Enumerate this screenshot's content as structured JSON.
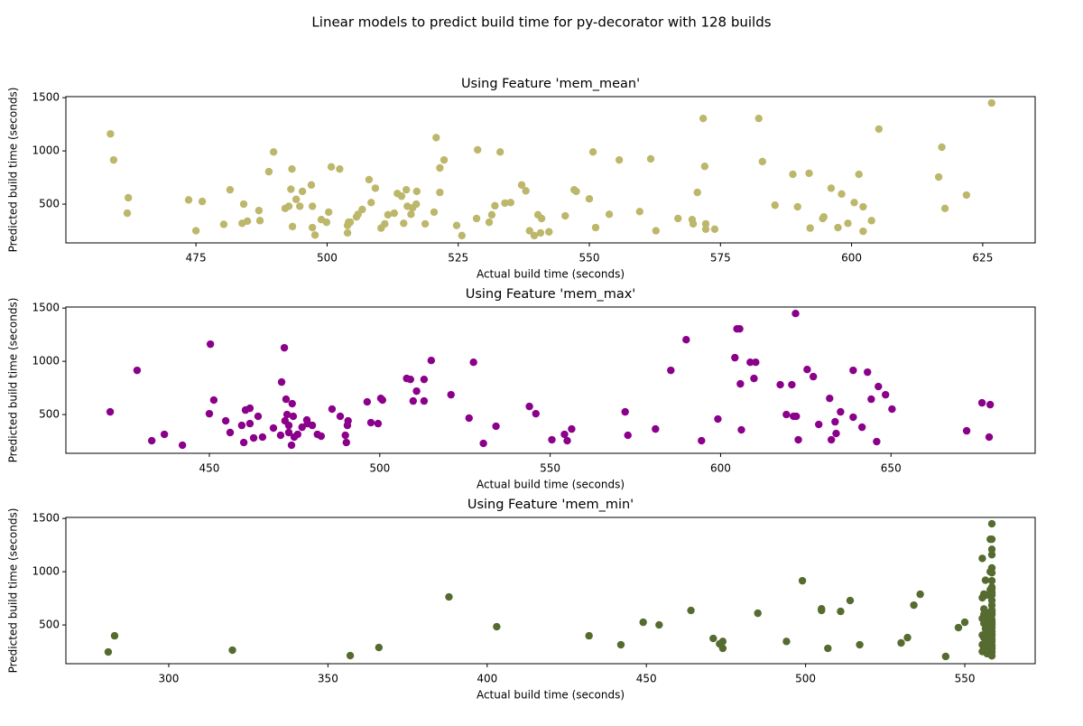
{
  "title": "Linear models to predict build time for py-decorator with 128 builds",
  "chart_data": [
    {
      "type": "scatter",
      "title": "Using Feature 'mem_mean'",
      "x_label": "Actual build time (seconds)",
      "y_label": "Predicted build time (seconds)",
      "color": "#bdb76b",
      "xlim": [
        450.2,
        635
      ],
      "ylim": [
        136,
        1510
      ],
      "xticks": [
        475,
        500,
        525,
        550,
        575,
        600,
        625
      ],
      "yticks": [
        500,
        1000,
        1500
      ],
      "x": [
        458.7,
        459.3,
        461.9,
        462.1,
        473.6,
        475,
        476.2,
        480.3,
        481.5,
        484.1,
        483.8,
        484.8,
        487,
        487.2,
        488.9,
        489.8,
        492,
        492.7,
        493.1,
        493.3,
        493.4,
        494.1,
        494.8,
        495.3,
        497,
        497.2,
        497.2,
        497.7,
        498.9,
        499.9,
        500.3,
        500.8,
        502.4,
        503.9,
        504.1,
        503.9,
        504.4,
        505.6,
        505.9,
        506.7,
        508,
        508.4,
        509.2,
        510.3,
        511,
        511.6,
        512.8,
        513.4,
        514.2,
        514.6,
        515.1,
        515.3,
        516,
        516.3,
        517,
        517.1,
        518.7,
        520.4,
        520.8,
        521.5,
        521.5,
        522.3,
        524.7,
        525.7,
        528.7,
        528.5,
        530.9,
        531.4,
        532,
        533,
        533.9,
        535,
        537.1,
        537.9,
        538.6,
        539.5,
        540.2,
        540.7,
        540.9,
        542.3,
        545.4,
        547.1,
        547.5,
        550,
        550.7,
        551.2,
        553.8,
        555.7,
        559.6,
        561.7,
        562.7,
        566.9,
        569.6,
        569.8,
        570.6,
        571.7,
        572,
        572.2,
        572.2,
        573.9,
        582.3,
        583,
        585.4,
        588.8,
        589.7,
        591.9,
        592.1,
        594.5,
        594.7,
        596.1,
        597.4,
        598.1,
        599.3,
        600.5,
        601.4,
        602.2,
        602.2,
        603.8,
        605.2,
        616.6,
        617.2,
        617.8,
        621.9,
        626.7
      ],
      "values": [
        1160,
        915,
        415,
        560,
        540,
        250,
        525,
        310,
        635,
        500,
        320,
        340,
        440,
        345,
        805,
        990,
        460,
        480,
        640,
        830,
        290,
        545,
        480,
        620,
        680,
        480,
        280,
        210,
        355,
        330,
        425,
        850,
        830,
        300,
        330,
        230,
        330,
        380,
        405,
        450,
        730,
        515,
        650,
        275,
        315,
        400,
        415,
        600,
        575,
        320,
        635,
        480,
        405,
        465,
        500,
        620,
        315,
        425,
        1125,
        840,
        610,
        915,
        300,
        205,
        1010,
        365,
        330,
        400,
        485,
        990,
        510,
        515,
        680,
        625,
        250,
        205,
        400,
        230,
        365,
        240,
        390,
        635,
        620,
        550,
        990,
        280,
        405,
        915,
        430,
        925,
        250,
        365,
        355,
        315,
        610,
        1305,
        855,
        315,
        265,
        265,
        1305,
        900,
        490,
        780,
        475,
        790,
        275,
        365,
        380,
        650,
        280,
        595,
        320,
        515,
        780,
        475,
        245,
        345,
        1205,
        755,
        1035,
        460,
        585,
        1450
      ]
    },
    {
      "type": "scatter",
      "title": "Using Feature 'mem_max'",
      "x_label": "Actual build time (seconds)",
      "y_label": "Predicted build time (seconds)",
      "color": "#8b008b",
      "xlim": [
        407.9,
        692.3
      ],
      "ylim": [
        136,
        1510
      ],
      "xticks": [
        450,
        500,
        550,
        600,
        650
      ],
      "yticks": [
        500,
        1000,
        1500
      ],
      "x": [
        420.9,
        428.8,
        433.1,
        436.8,
        442.1,
        450,
        451.3,
        450.3,
        454.8,
        456.1,
        459.5,
        460.1,
        460.6,
        461.9,
        461.9,
        463,
        464.3,
        465.6,
        468.8,
        470.9,
        471.2,
        472,
        472.2,
        472.5,
        472.8,
        473.3,
        473.3,
        474.3,
        474.1,
        474.6,
        474.9,
        475.9,
        477.2,
        478.6,
        478.8,
        480.2,
        481.7,
        482.8,
        486,
        488.4,
        489.9,
        490.5,
        490.7,
        490.2,
        496.3,
        497.4,
        499.5,
        500.3,
        500.8,
        507.9,
        509,
        509.8,
        510.8,
        513,
        513,
        515.1,
        520.9,
        526.2,
        527.5,
        530.4,
        534.1,
        543.9,
        545.8,
        550.5,
        554.2,
        555,
        556.3,
        572,
        572.8,
        580.9,
        585.4,
        589.9,
        594.4,
        599.2,
        604.2,
        604.8,
        605.6,
        605.8,
        606.1,
        608.7,
        610.3,
        609.8,
        617.5,
        619.3,
        620.9,
        621.4,
        622.2,
        622,
        622.8,
        625.4,
        627.2,
        628.8,
        632,
        632.5,
        633.6,
        633.9,
        635.2,
        638.9,
        638.9,
        641.5,
        643.1,
        644.2,
        645.8,
        646.3,
        648.4,
        650.3,
        672.2,
        676.7,
        678.8,
        679.1
      ],
      "values": [
        525,
        915,
        254,
        314,
        212,
        508,
        636,
        1161,
        441,
        331,
        398,
        237,
        542,
        559,
        415,
        280,
        483,
        288,
        373,
        305,
        805,
        1127,
        441,
        644,
        500,
        398,
        331,
        602,
        212,
        483,
        288,
        314,
        381,
        449,
        415,
        398,
        314,
        297,
        551,
        483,
        305,
        398,
        441,
        237,
        619,
        424,
        415,
        652,
        636,
        839,
        830,
        627,
        720,
        830,
        627,
        1008,
        686,
        466,
        991,
        229,
        390,
        576,
        508,
        263,
        314,
        254,
        364,
        525,
        305,
        364,
        915,
        1203,
        254,
        458,
        1034,
        1305,
        1305,
        788,
        356,
        991,
        991,
        839,
        780,
        500,
        780,
        483,
        483,
        1449,
        263,
        923,
        856,
        407,
        652,
        263,
        432,
        322,
        525,
        915,
        475,
        381,
        898,
        644,
        246,
        763,
        686,
        551,
        347,
        610,
        288,
        593
      ]
    },
    {
      "type": "scatter",
      "title": "Using Feature 'mem_min'",
      "x_label": "Actual build time (seconds)",
      "y_label": "Predicted build time (seconds)",
      "color": "#556b2f",
      "xlim": [
        267.7,
        572.1
      ],
      "ylim": [
        136,
        1510
      ],
      "xticks": [
        300,
        350,
        400,
        450,
        500,
        550
      ],
      "yticks": [
        500,
        1000,
        1500
      ],
      "x": [
        281,
        283,
        320,
        357,
        366,
        388,
        403,
        432,
        442,
        449,
        454,
        464,
        471,
        473,
        474,
        474,
        485,
        494,
        499,
        505,
        505,
        507,
        511,
        514,
        517,
        530,
        532,
        534,
        536,
        544,
        548,
        550,
        558.5,
        558.5,
        558,
        558.5,
        558.5,
        555.5,
        558.5,
        558,
        558.5,
        556.5,
        558.5,
        558.5,
        558.5,
        558,
        558.5,
        556,
        557,
        558.5,
        555.5,
        558.5,
        558.5,
        556,
        558.5,
        558.5,
        558,
        558.5,
        556,
        558.5,
        558,
        555.5,
        558.5,
        557,
        558.5,
        556,
        558.5,
        558.5,
        557,
        558,
        558.5,
        556.5,
        558,
        558.5,
        557,
        558.5,
        555.5,
        558.5,
        558,
        556,
        558.5,
        557,
        558.5,
        556.5,
        558,
        555.5,
        558.5,
        557,
        558.5,
        556,
        558.5,
        558,
        555.5,
        558.5,
        557,
        558.5
      ],
      "values": [
        246,
        398,
        263,
        212,
        288,
        763,
        483,
        398,
        314,
        525,
        500,
        636,
        373,
        322,
        280,
        345,
        610,
        345,
        915,
        636,
        652,
        280,
        627,
        729,
        314,
        331,
        381,
        686,
        788,
        204,
        475,
        525,
        1450,
        1305,
        1305,
        1210,
        1160,
        1125,
        1035,
        1000,
        990,
        920,
        915,
        855,
        840,
        830,
        805,
        790,
        780,
        780,
        755,
        730,
        685,
        650,
        640,
        625,
        620,
        610,
        600,
        595,
        580,
        560,
        550,
        540,
        525,
        515,
        510,
        500,
        485,
        480,
        475,
        465,
        460,
        440,
        430,
        415,
        405,
        400,
        390,
        380,
        365,
        355,
        345,
        330,
        320,
        315,
        310,
        300,
        290,
        280,
        275,
        265,
        250,
        245,
        230,
        210
      ]
    }
  ]
}
